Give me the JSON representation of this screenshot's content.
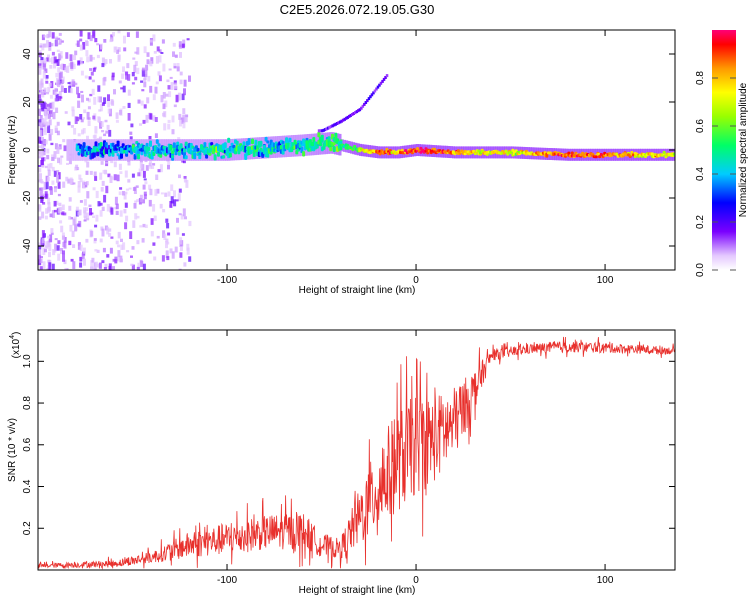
{
  "title": "C2E5.2026.072.19.05.G30",
  "chart_data": [
    {
      "type": "heatmap",
      "title": "C2E5.2026.072.19.05.G30",
      "xlabel": "Height of straight line (km)",
      "ylabel": "Frequency (Hz)",
      "xlim": [
        -200,
        137
      ],
      "ylim": [
        -50,
        50
      ],
      "x_ticks": [
        -100,
        0,
        100
      ],
      "y_ticks": [
        -40,
        -20,
        0,
        20,
        40
      ],
      "colorbar": {
        "label": "Normalized spectral amplitude",
        "range": [
          0,
          1
        ],
        "ticks": [
          0.0,
          0.2,
          0.4,
          0.6,
          0.8
        ],
        "tick_labels": [
          "0.0",
          "0.2",
          "0.4",
          "0.6",
          "0.8"
        ]
      },
      "ridge": [
        {
          "x": -180,
          "freq": 0,
          "amp": 0.35
        },
        {
          "x": -150,
          "freq": 0,
          "amp": 0.4
        },
        {
          "x": -120,
          "freq": 0,
          "amp": 0.42
        },
        {
          "x": -100,
          "freq": 0,
          "amp": 0.45
        },
        {
          "x": -80,
          "freq": 1,
          "amp": 0.45
        },
        {
          "x": -60,
          "freq": 2,
          "amp": 0.45
        },
        {
          "x": -45,
          "freq": 3,
          "amp": 0.5
        },
        {
          "x": -30,
          "freq": 0,
          "amp": 0.6
        },
        {
          "x": -20,
          "freq": -1,
          "amp": 0.9
        },
        {
          "x": -10,
          "freq": -1,
          "amp": 0.8
        },
        {
          "x": 0,
          "freq": 0,
          "amp": 0.95
        },
        {
          "x": 20,
          "freq": -1,
          "amp": 0.8
        },
        {
          "x": 50,
          "freq": -1,
          "amp": 0.7
        },
        {
          "x": 80,
          "freq": -2,
          "amp": 0.9
        },
        {
          "x": 100,
          "freq": -2,
          "amp": 0.85
        },
        {
          "x": 137,
          "freq": -2,
          "amp": 0.7
        }
      ],
      "branch": [
        {
          "x": -50,
          "freq": 8
        },
        {
          "x": -40,
          "freq": 12
        },
        {
          "x": -30,
          "freq": 17
        },
        {
          "x": -25,
          "freq": 22
        },
        {
          "x": -20,
          "freq": 27
        },
        {
          "x": -16,
          "freq": 31
        }
      ]
    },
    {
      "type": "line",
      "title": "",
      "xlabel": "Height of straight line (km)",
      "ylabel": "SNR (10 * v/v)",
      "multiplier_label": "(x10",
      "multiplier_exponent": "4",
      "multiplier_close": ")",
      "xlim": [
        -200,
        137
      ],
      "ylim": [
        0,
        11500
      ],
      "x_ticks": [
        -100,
        0,
        100
      ],
      "y_ticks": [
        2000,
        4000,
        6000,
        8000,
        10000
      ],
      "y_tick_labels": [
        "0.2",
        "0.4",
        "0.6",
        "0.8",
        "1.0"
      ],
      "series": [
        {
          "name": "SNR",
          "color": "#e8302c",
          "envelope": [
            {
              "x": -200,
              "mean": 200,
              "amp": 150
            },
            {
              "x": -160,
              "mean": 300,
              "amp": 250
            },
            {
              "x": -140,
              "mean": 600,
              "amp": 400
            },
            {
              "x": -120,
              "mean": 1200,
              "amp": 900
            },
            {
              "x": -100,
              "mean": 1500,
              "amp": 1100
            },
            {
              "x": -80,
              "mean": 1800,
              "amp": 1200
            },
            {
              "x": -60,
              "mean": 1900,
              "amp": 1300
            },
            {
              "x": -50,
              "mean": 1200,
              "amp": 800
            },
            {
              "x": -40,
              "mean": 1000,
              "amp": 700
            },
            {
              "x": -30,
              "mean": 2500,
              "amp": 2000
            },
            {
              "x": -20,
              "mean": 4000,
              "amp": 3000
            },
            {
              "x": -10,
              "mean": 5200,
              "amp": 3500
            },
            {
              "x": 0,
              "mean": 6000,
              "amp": 3500
            },
            {
              "x": 10,
              "mean": 6300,
              "amp": 3000
            },
            {
              "x": 20,
              "mean": 7000,
              "amp": 2500
            },
            {
              "x": 30,
              "mean": 8500,
              "amp": 1500
            },
            {
              "x": 40,
              "mean": 10300,
              "amp": 400
            },
            {
              "x": 60,
              "mean": 10600,
              "amp": 350
            },
            {
              "x": 80,
              "mean": 10700,
              "amp": 400
            },
            {
              "x": 100,
              "mean": 10650,
              "amp": 350
            },
            {
              "x": 137,
              "mean": 10500,
              "amp": 250
            }
          ]
        }
      ]
    }
  ]
}
